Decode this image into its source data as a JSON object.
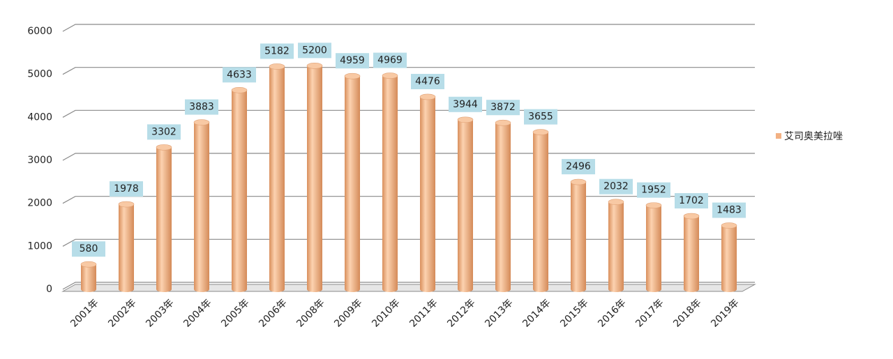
{
  "chart_data": {
    "type": "bar",
    "categories": [
      "2001年",
      "2002年",
      "2003年",
      "2004年",
      "2005年",
      "2006年",
      "2008年",
      "2009年",
      "2010年",
      "2011年",
      "2012年",
      "2013年",
      "2014年",
      "2015年",
      "2016年",
      "2017年",
      "2018年",
      "2019年"
    ],
    "series": [
      {
        "name": "艾司奥美拉唑",
        "color": "#f2b183",
        "values": [
          580,
          1978,
          3302,
          3883,
          4633,
          5182,
          5200,
          4959,
          4969,
          4476,
          3944,
          3872,
          3655,
          2496,
          2032,
          1952,
          1702,
          1483
        ]
      }
    ],
    "ylim": [
      0,
      6000
    ],
    "yticks": [
      0,
      1000,
      2000,
      3000,
      4000,
      5000,
      6000
    ],
    "grid": true,
    "legend": "right"
  }
}
